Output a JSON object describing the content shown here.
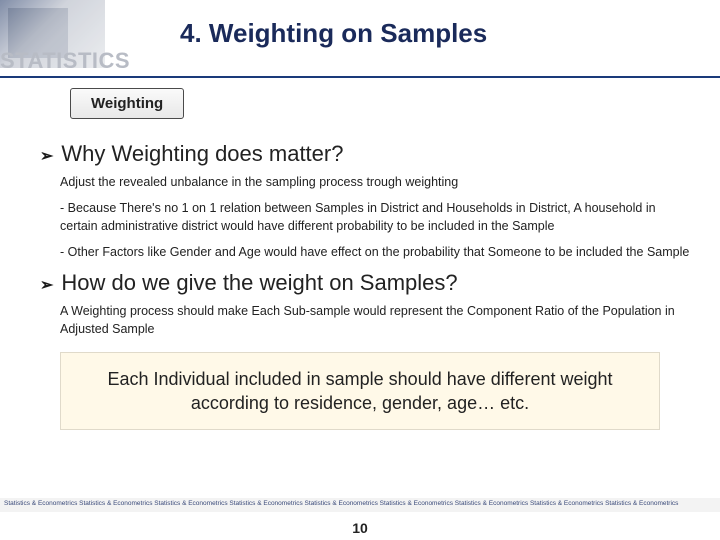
{
  "header": {
    "title": "4. Weighting on Samples",
    "brand": "STATISTICS"
  },
  "tab": {
    "label": "Weighting"
  },
  "sections": {
    "q1": "Why Weighting does matter?",
    "p1": "Adjust the revealed unbalance in the sampling process trough weighting",
    "p2": "- Because There's no 1 on 1 relation between Samples in District and Households in District, A household in certain administrative district would have different probability to be included in the Sample",
    "p3": "- Other Factors like Gender and Age would have effect on the probability that Someone to be included the Sample",
    "q2": "How do we give the weight on Samples?",
    "p4": "A Weighting process should make Each Sub-sample would represent the Component Ratio of the Population in Adjusted Sample",
    "highlight": "Each Individual included in sample should have different weight according to residence, gender, age… etc."
  },
  "footer": {
    "strip": "Statistics & Econometrics Statistics & Econometrics Statistics & Econometrics Statistics & Econometrics Statistics & Econometrics Statistics & Econometrics Statistics & Econometrics Statistics & Econometrics Statistics & Econometrics",
    "page": "10"
  },
  "colors": {
    "title_color": "#1a2a5a",
    "brand_color": "#b8bcc5",
    "divider_color": "#1a3a7a",
    "highlight_bg": "#fff9e8",
    "highlight_border": "#e0daca",
    "footer_bg": "#f3f3f3",
    "footer_text": "#3a4a7a"
  }
}
